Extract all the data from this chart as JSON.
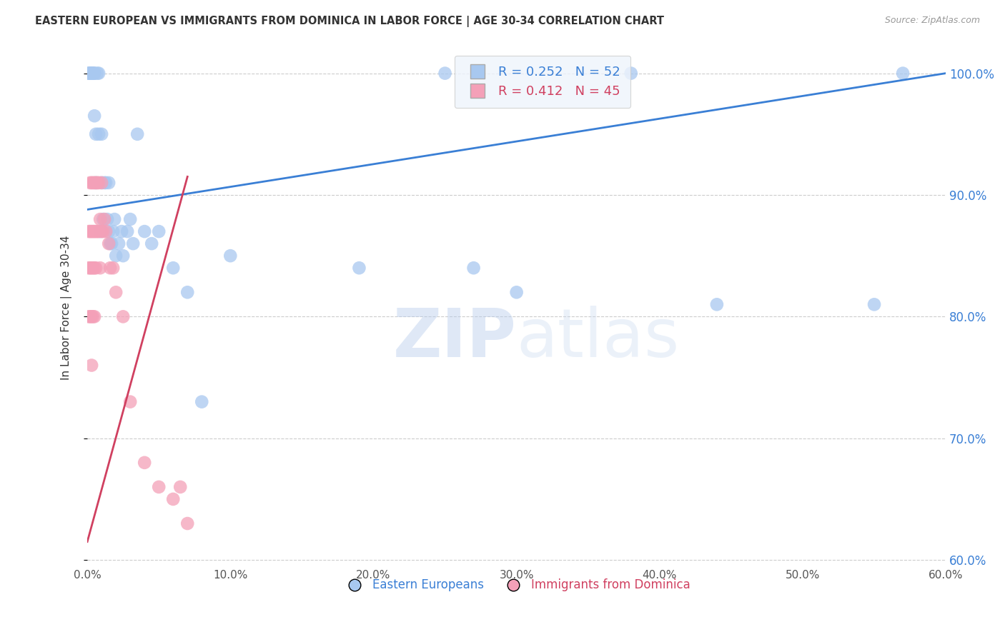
{
  "title": "EASTERN EUROPEAN VS IMMIGRANTS FROM DOMINICA IN LABOR FORCE | AGE 30-34 CORRELATION CHART",
  "source": "Source: ZipAtlas.com",
  "ylabel": "In Labor Force | Age 30-34",
  "xlim": [
    0.0,
    0.6
  ],
  "ylim": [
    0.595,
    1.02
  ],
  "xticks": [
    0.0,
    0.1,
    0.2,
    0.3,
    0.4,
    0.5,
    0.6
  ],
  "yticks": [
    0.6,
    0.7,
    0.8,
    0.9,
    1.0
  ],
  "blue_R": 0.252,
  "blue_N": 52,
  "pink_R": 0.412,
  "pink_N": 45,
  "blue_color": "#a8c8f0",
  "pink_color": "#f4a0b8",
  "blue_line_color": "#3a7fd5",
  "pink_line_color": "#d04060",
  "legend_box_color": "#eef4fc",
  "legend_blue_text": "#3a7fd5",
  "legend_pink_text": "#d04060",
  "title_color": "#333333",
  "source_color": "#999999",
  "ylabel_color": "#333333",
  "ytick_color": "#3a7fd5",
  "xtick_color": "#555555",
  "grid_color": "#cccccc",
  "background_color": "#ffffff",
  "watermark_zip": "ZIP",
  "watermark_atlas": "atlas",
  "blue_line_x0": 0.0,
  "blue_line_y0": 0.888,
  "blue_line_x1": 0.6,
  "blue_line_y1": 1.0,
  "pink_line_x0": 0.0,
  "pink_line_y0": 0.615,
  "pink_line_x1": 0.07,
  "pink_line_y1": 0.915,
  "blue_x": [
    0.001,
    0.001,
    0.002,
    0.002,
    0.003,
    0.003,
    0.004,
    0.004,
    0.005,
    0.005,
    0.005,
    0.006,
    0.006,
    0.007,
    0.008,
    0.008,
    0.009,
    0.01,
    0.01,
    0.011,
    0.012,
    0.013,
    0.014,
    0.015,
    0.015,
    0.016,
    0.017,
    0.018,
    0.019,
    0.02,
    0.022,
    0.024,
    0.025,
    0.028,
    0.03,
    0.032,
    0.035,
    0.04,
    0.045,
    0.05,
    0.06,
    0.07,
    0.08,
    0.1,
    0.19,
    0.25,
    0.27,
    0.3,
    0.38,
    0.44,
    0.55,
    0.57
  ],
  "blue_y": [
    1.0,
    1.0,
    1.0,
    1.0,
    1.0,
    1.0,
    1.0,
    1.0,
    1.0,
    1.0,
    0.965,
    0.95,
    0.91,
    1.0,
    1.0,
    0.95,
    0.87,
    0.95,
    0.91,
    0.88,
    0.91,
    0.91,
    0.88,
    0.91,
    0.87,
    0.86,
    0.86,
    0.87,
    0.88,
    0.85,
    0.86,
    0.87,
    0.85,
    0.87,
    0.88,
    0.86,
    0.95,
    0.87,
    0.86,
    0.87,
    0.84,
    0.82,
    0.73,
    0.85,
    0.84,
    1.0,
    0.84,
    0.82,
    1.0,
    0.81,
    0.81,
    1.0
  ],
  "pink_x": [
    0.001,
    0.001,
    0.001,
    0.002,
    0.002,
    0.002,
    0.002,
    0.003,
    0.003,
    0.003,
    0.003,
    0.003,
    0.004,
    0.004,
    0.004,
    0.004,
    0.005,
    0.005,
    0.005,
    0.005,
    0.006,
    0.006,
    0.006,
    0.007,
    0.007,
    0.008,
    0.008,
    0.009,
    0.009,
    0.01,
    0.01,
    0.011,
    0.012,
    0.013,
    0.015,
    0.016,
    0.018,
    0.02,
    0.025,
    0.03,
    0.04,
    0.05,
    0.06,
    0.065,
    0.07
  ],
  "pink_y": [
    0.87,
    0.84,
    0.8,
    0.91,
    0.87,
    0.84,
    0.8,
    0.91,
    0.87,
    0.84,
    0.8,
    0.76,
    0.91,
    0.87,
    0.84,
    0.8,
    0.91,
    0.87,
    0.84,
    0.8,
    0.91,
    0.87,
    0.84,
    0.91,
    0.87,
    0.91,
    0.87,
    0.88,
    0.84,
    0.91,
    0.87,
    0.87,
    0.88,
    0.87,
    0.86,
    0.84,
    0.84,
    0.82,
    0.8,
    0.73,
    0.68,
    0.66,
    0.65,
    0.66,
    0.63
  ]
}
